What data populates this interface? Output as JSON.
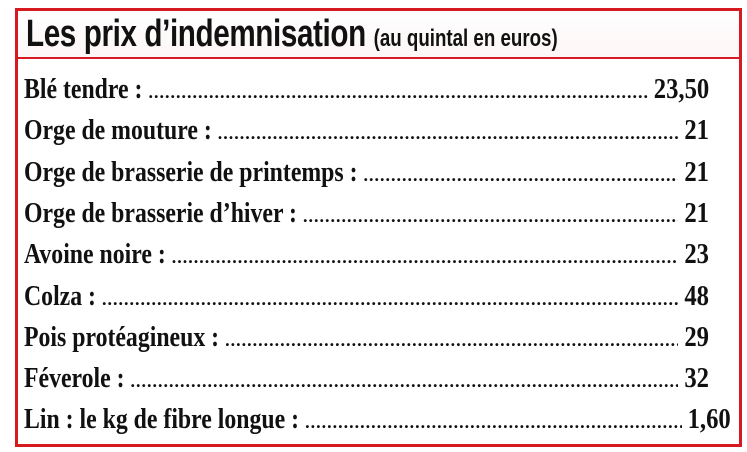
{
  "header": {
    "title": "Les prix d’indemnisation",
    "subtitle": "(au quintal en euros)"
  },
  "colors": {
    "border": "#d71920",
    "text": "#111111"
  },
  "items": [
    {
      "label": "Blé tendre :",
      "value": "23,50"
    },
    {
      "label": "Orge de mouture :",
      "value": "21"
    },
    {
      "label": "Orge de brasserie de printemps :",
      "value": "21"
    },
    {
      "label": "Orge de brasserie d’hiver :",
      "value": "21"
    },
    {
      "label": "Avoine noire :",
      "value": "23"
    },
    {
      "label": "Colza :",
      "value": "48"
    },
    {
      "label": "Pois protéagineux :",
      "value": "29"
    },
    {
      "label": "Féverole :",
      "value": "32"
    },
    {
      "label": "Lin : le kg de fibre longue :",
      "value": "1,60"
    }
  ]
}
